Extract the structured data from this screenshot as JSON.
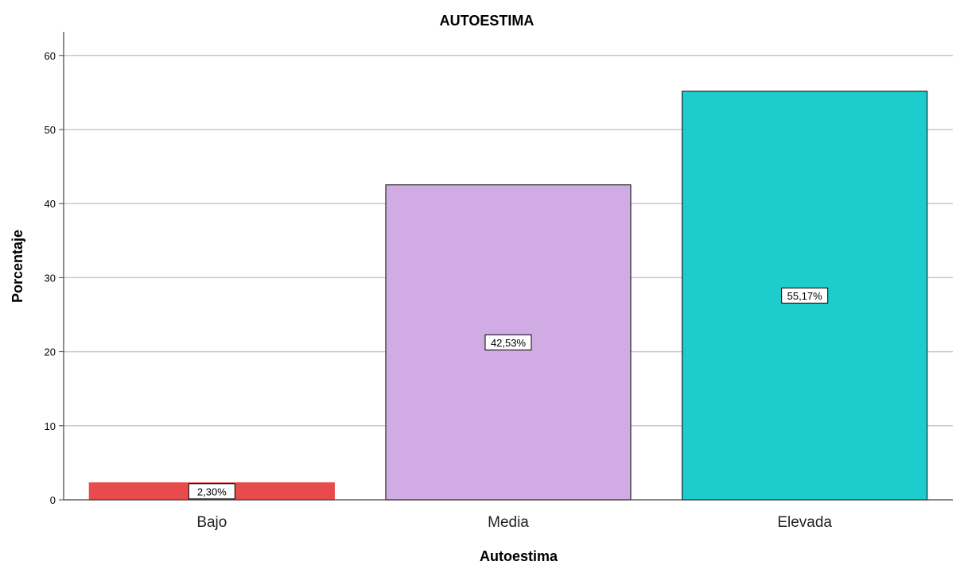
{
  "chart_data": {
    "type": "bar",
    "title": "AUTOESTIMA",
    "xlabel": "Autoestima",
    "ylabel": "Porcentaje",
    "categories": [
      "Bajo",
      "Media",
      "Elevada"
    ],
    "values": [
      2.3,
      42.53,
      55.17
    ],
    "data_labels": [
      "2,30%",
      "42,53%",
      "55,17%"
    ],
    "colors": [
      "#e84b4b",
      "#d1abe3",
      "#1dcdcd"
    ],
    "ylim": [
      0,
      63
    ],
    "yticks": [
      0,
      10,
      20,
      30,
      40,
      50,
      60
    ],
    "grid": true
  }
}
